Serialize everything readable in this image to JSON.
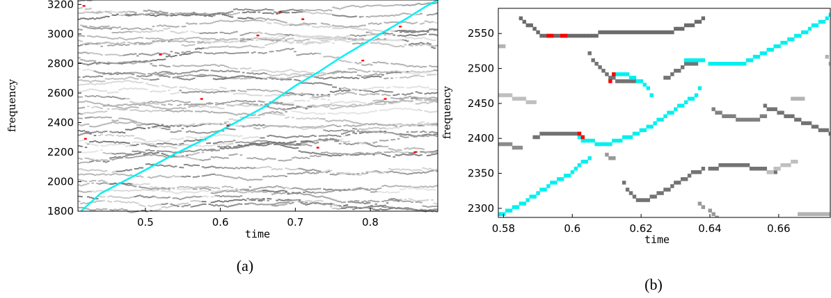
{
  "colors": {
    "ridge_dark": "#7f7f7f",
    "ridge_light": "#d3d3d3",
    "highlight_track": "#00f0f0",
    "highlight_point": "#ff0000",
    "frame": "#000000"
  },
  "chart_data": [
    {
      "type": "heatmap",
      "caption": "(a)",
      "xlabel": "time",
      "ylabel": "frequency",
      "xlim": [
        0.41,
        0.89
      ],
      "ylim": [
        1800,
        3230
      ],
      "xticks": [
        0.5,
        0.6,
        0.7,
        0.8
      ],
      "yticks": [
        1800,
        2000,
        2200,
        2400,
        2600,
        2800,
        3000,
        3200
      ],
      "grid": false,
      "cell": {
        "dt": 0.003,
        "df": 18
      },
      "background_ridge_count": 38,
      "highlight_track": {
        "name": "",
        "points": [
          [
            0.415,
            1805
          ],
          [
            0.44,
            1920
          ],
          [
            0.47,
            2000
          ],
          [
            0.5,
            2080
          ],
          [
            0.54,
            2190
          ],
          [
            0.58,
            2290
          ],
          [
            0.62,
            2400
          ],
          [
            0.66,
            2510
          ],
          [
            0.7,
            2650
          ],
          [
            0.73,
            2740
          ],
          [
            0.76,
            2840
          ],
          [
            0.79,
            2930
          ],
          [
            0.82,
            3020
          ],
          [
            0.85,
            3110
          ],
          [
            0.875,
            3190
          ],
          [
            0.89,
            3230
          ]
        ]
      },
      "red_points": [
        [
          0.418,
          3190
        ],
        [
          0.52,
          2860
        ],
        [
          0.575,
          2560
        ],
        [
          0.61,
          2380
        ],
        [
          0.65,
          2990
        ],
        [
          0.68,
          3150
        ],
        [
          0.71,
          3100
        ],
        [
          0.73,
          2230
        ],
        [
          0.79,
          2820
        ],
        [
          0.82,
          2560
        ],
        [
          0.84,
          3050
        ],
        [
          0.86,
          2200
        ],
        [
          0.42,
          2290
        ]
      ]
    },
    {
      "type": "heatmap",
      "caption": "(b)",
      "xlabel": "time",
      "ylabel": "frequency",
      "xlim": [
        0.5785,
        0.675
      ],
      "ylim": [
        2287,
        2586
      ],
      "xticks": [
        0.58,
        0.6,
        0.62,
        0.64,
        0.66
      ],
      "yticks": [
        2300,
        2350,
        2400,
        2450,
        2500,
        2550
      ],
      "grid": false,
      "cell": {
        "dt": 0.001,
        "df": 5
      },
      "grey_ridges": [
        {
          "shade": 0.42,
          "points": [
            [
              0.585,
              2572
            ],
            [
              0.588,
              2560
            ],
            [
              0.591,
              2548
            ],
            [
              0.593,
              2545
            ],
            [
              0.6,
              2545
            ],
            [
              0.605,
              2545
            ],
            [
              0.608,
              2550
            ],
            [
              0.612,
              2550
            ],
            [
              0.616,
              2550
            ],
            [
              0.62,
              2550
            ],
            [
              0.625,
              2550
            ],
            [
              0.63,
              2555
            ],
            [
              0.634,
              2562
            ],
            [
              0.638,
              2570
            ]
          ]
        },
        {
          "shade": 0.45,
          "points": [
            [
              0.605,
              2520
            ],
            [
              0.607,
              2505
            ],
            [
              0.61,
              2490
            ],
            [
              0.613,
              2482
            ],
            [
              0.616,
              2480
            ],
            [
              0.618,
              2480
            ]
          ]
        },
        {
          "shade": 0.45,
          "points": [
            [
              0.589,
              2400
            ],
            [
              0.592,
              2408
            ],
            [
              0.596,
              2408
            ],
            [
              0.6,
              2408
            ],
            [
              0.602,
              2405
            ]
          ]
        },
        {
          "shade": 0.45,
          "points": [
            [
              0.627,
              2485
            ],
            [
              0.63,
              2495
            ],
            [
              0.633,
              2505
            ],
            [
              0.636,
              2508
            ]
          ]
        },
        {
          "shade": 0.45,
          "points": [
            [
              0.615,
              2335
            ],
            [
              0.617,
              2320
            ],
            [
              0.619,
              2312
            ],
            [
              0.623,
              2315
            ],
            [
              0.627,
              2325
            ],
            [
              0.631,
              2338
            ],
            [
              0.635,
              2350
            ],
            [
              0.64,
              2358
            ],
            [
              0.645,
              2362
            ],
            [
              0.65,
              2360
            ],
            [
              0.655,
              2355
            ],
            [
              0.658,
              2350
            ]
          ]
        },
        {
          "shade": 0.5,
          "points": [
            [
              0.64,
              2440
            ],
            [
              0.644,
              2432
            ],
            [
              0.648,
              2428
            ],
            [
              0.652,
              2428
            ],
            [
              0.655,
              2432
            ]
          ]
        },
        {
          "shade": 0.45,
          "points": [
            [
              0.655,
              2445
            ],
            [
              0.659,
              2438
            ],
            [
              0.663,
              2430
            ],
            [
              0.667,
              2422
            ],
            [
              0.671,
              2412
            ],
            [
              0.675,
              2408
            ]
          ]
        },
        {
          "shade": 0.7,
          "points": [
            [
              0.673,
              2515
            ],
            [
              0.674,
              2505
            ],
            [
              0.675,
              2498
            ]
          ]
        },
        {
          "shade": 0.75,
          "points": [
            [
              0.578,
              2460
            ],
            [
              0.582,
              2460
            ],
            [
              0.586,
              2455
            ],
            [
              0.589,
              2450
            ]
          ]
        },
        {
          "shade": 0.55,
          "points": [
            [
              0.578,
              2390
            ],
            [
              0.582,
              2390
            ],
            [
              0.585,
              2385
            ]
          ]
        },
        {
          "shade": 0.75,
          "points": [
            [
              0.656,
              2352
            ],
            [
              0.66,
              2360
            ],
            [
              0.664,
              2368
            ]
          ]
        },
        {
          "shade": 0.7,
          "points": [
            [
              0.665,
              2290
            ],
            [
              0.67,
              2290
            ],
            [
              0.675,
              2290
            ]
          ]
        },
        {
          "shade": 0.6,
          "points": [
            [
              0.637,
              2305
            ],
            [
              0.639,
              2295
            ],
            [
              0.641,
              2288
            ]
          ]
        },
        {
          "shade": 0.7,
          "points": [
            [
              0.578,
              2530
            ],
            [
              0.58,
              2530
            ]
          ]
        },
        {
          "shade": 0.7,
          "points": [
            [
              0.663,
              2458
            ],
            [
              0.666,
              2458
            ]
          ]
        },
        {
          "shade": 0.6,
          "points": [
            [
              0.61,
              2378
            ],
            [
              0.612,
              2370
            ]
          ]
        }
      ],
      "cyan_tracks": [
        {
          "name": "",
          "points": [
            [
              0.578,
              2288
            ],
            [
              0.584,
              2302
            ],
            [
              0.589,
              2318
            ],
            [
              0.594,
              2335
            ],
            [
              0.599,
              2348
            ],
            [
              0.603,
              2365
            ],
            [
              0.605,
              2370
            ]
          ]
        },
        {
          "name": "",
          "points": [
            [
              0.602,
              2400
            ],
            [
              0.605,
              2395
            ],
            [
              0.609,
              2393
            ],
            [
              0.612,
              2395
            ],
            [
              0.616,
              2402
            ],
            [
              0.622,
              2415
            ],
            [
              0.627,
              2432
            ],
            [
              0.632,
              2448
            ],
            [
              0.635,
              2458
            ],
            [
              0.637,
              2470
            ]
          ]
        },
        {
          "name": "",
          "points": [
            [
              0.613,
              2492
            ],
            [
              0.616,
              2490
            ],
            [
              0.619,
              2482
            ],
            [
              0.621,
              2478
            ],
            [
              0.622,
              2470
            ],
            [
              0.623,
              2462
            ]
          ]
        },
        {
          "name": "",
          "points": [
            [
              0.633,
              2510
            ],
            [
              0.638,
              2510
            ],
            [
              0.64,
              2507
            ],
            [
              0.645,
              2505
            ],
            [
              0.65,
              2510
            ],
            [
              0.655,
              2522
            ],
            [
              0.66,
              2535
            ],
            [
              0.665,
              2548
            ],
            [
              0.67,
              2563
            ],
            [
              0.675,
              2578
            ]
          ]
        }
      ],
      "red_points": [
        [
          0.593,
          2545
        ],
        [
          0.594,
          2545
        ],
        [
          0.597,
          2545
        ],
        [
          0.598,
          2545
        ],
        [
          0.611,
          2480
        ],
        [
          0.612,
          2490
        ],
        [
          0.602,
          2408
        ],
        [
          0.603,
          2402
        ]
      ]
    }
  ]
}
